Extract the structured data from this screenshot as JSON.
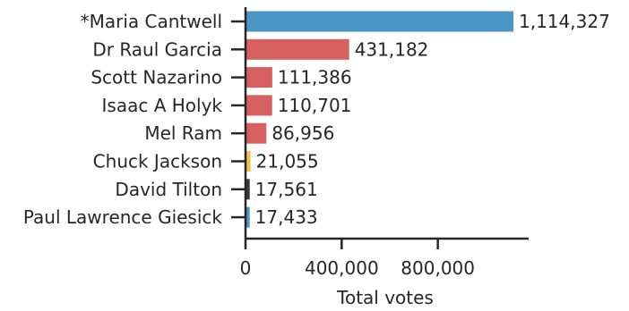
{
  "chart_data": {
    "type": "bar",
    "orientation": "horizontal",
    "categories": [
      "*Maria Cantwell",
      "Dr Raul Garcia",
      "Scott Nazarino",
      "Isaac A Holyk",
      "Mel Ram",
      "Chuck Jackson",
      "David Tilton",
      "Paul Lawrence Giesick"
    ],
    "values": [
      1114327,
      431182,
      111386,
      110701,
      86956,
      21055,
      17561,
      17433
    ],
    "value_labels": [
      "1,114,327",
      "431,182",
      "111,386",
      "110,701",
      "86,956",
      "21,055",
      "17,561",
      "17,433"
    ],
    "colors": [
      "#4a95c4",
      "#d65f5f",
      "#d65f5f",
      "#d65f5f",
      "#d65f5f",
      "#f2c056",
      "#3a3a3a",
      "#4a95c4"
    ],
    "xlabel": "Total votes",
    "xticks": [
      0,
      400000,
      800000
    ],
    "xtick_labels": [
      "0",
      "400,000",
      "800,000"
    ],
    "xlim": [
      0,
      1150000
    ],
    "grid": false
  }
}
